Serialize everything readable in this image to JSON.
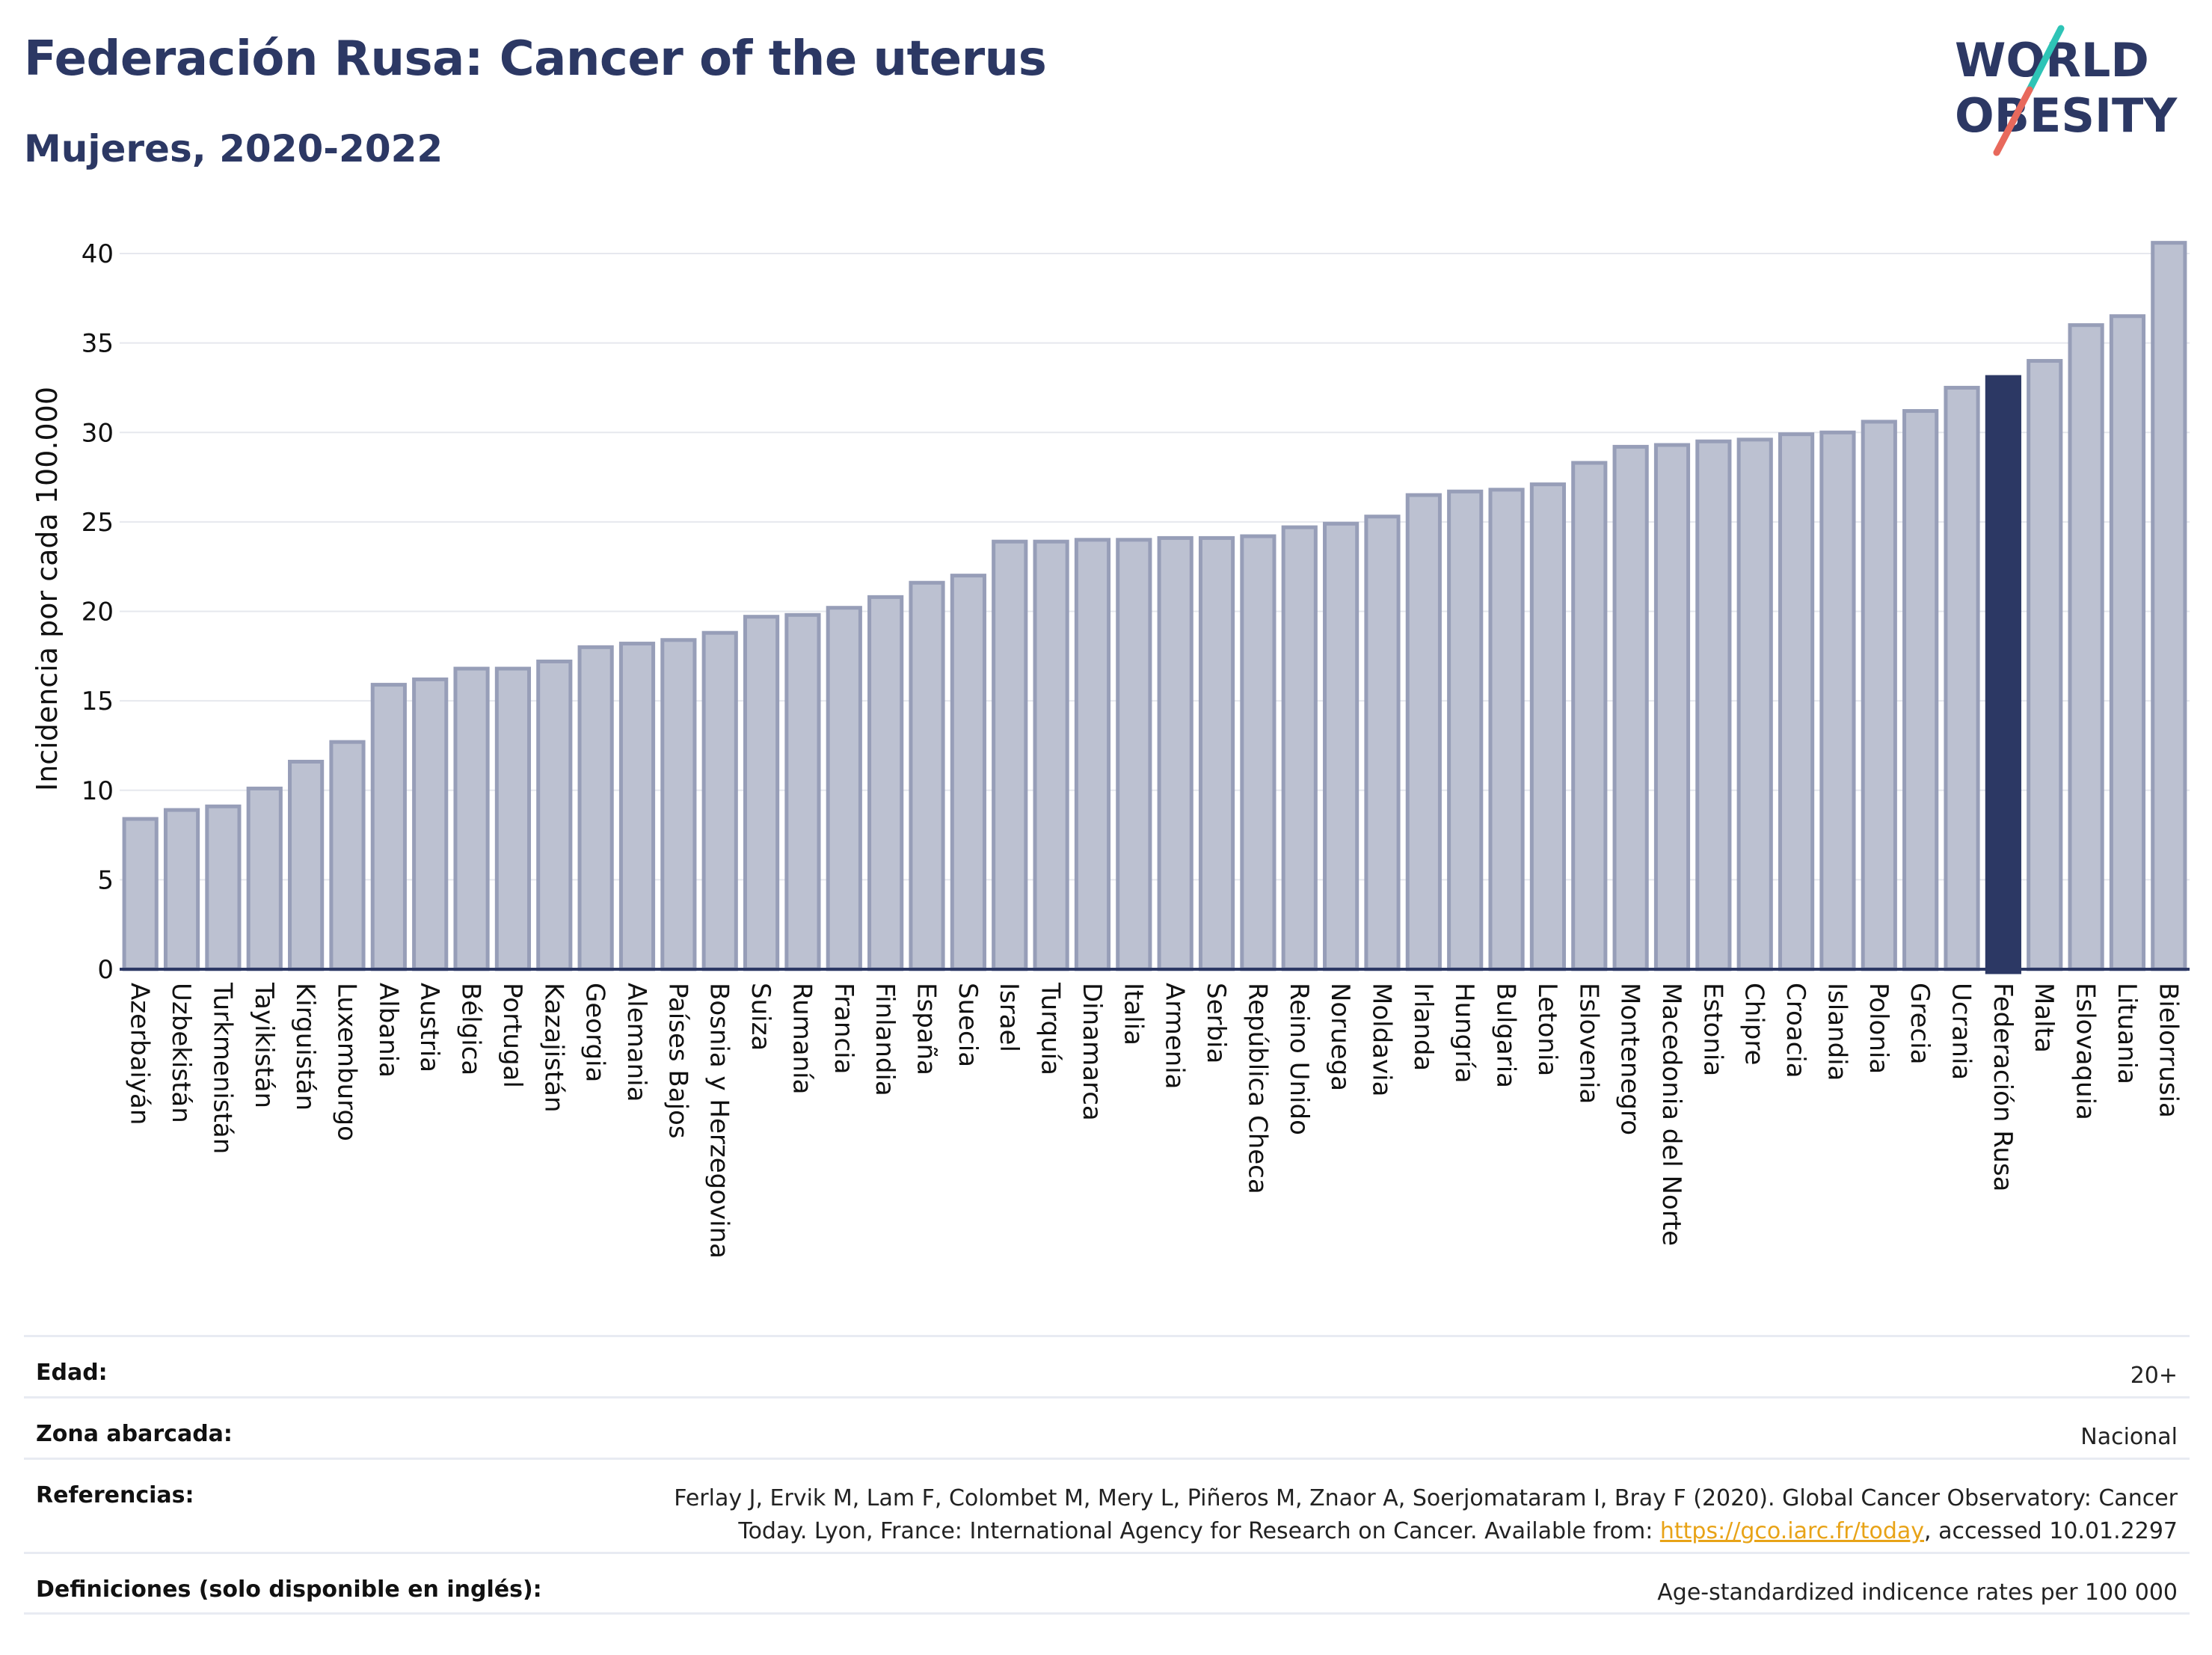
{
  "header": {
    "title": "Federación Rusa: Cancer of the uterus",
    "subtitle": "Mujeres, 2020-2022",
    "logo_line1": "WORLD",
    "logo_line2": "OBESITY"
  },
  "colors": {
    "bar_fill": "#bcc1d1",
    "bar_edge": "#979eb8",
    "highlight": "#2c3864",
    "title": "#2c3864",
    "grid": "#e6e8ee",
    "logo_teal": "#2ec4b6",
    "logo_coral": "#e8695c"
  },
  "chart_data": {
    "type": "bar",
    "ylabel": "Incidencia por cada  100.000",
    "ylim": [
      0,
      42
    ],
    "yticks": [
      0,
      5,
      10,
      15,
      20,
      25,
      30,
      35,
      40
    ],
    "highlight": "Federación Rusa",
    "grid": true,
    "categories": [
      "Azerbaiyán",
      "Uzbekistán",
      "Turkmenistán",
      "Tayikistán",
      "Kirguistán",
      "Luxemburgo",
      "Albania",
      "Austria",
      "Bélgica",
      "Portugal",
      "Kazajistán",
      "Georgia",
      "Alemania",
      "Países Bajos",
      "Bosnia y Herzegovina",
      "Suiza",
      "Rumanía",
      "Francia",
      "Finlandia",
      "España",
      "Suecia",
      "Israel",
      "Turquía",
      "Dinamarca",
      "Italia",
      "Armenia",
      "Serbia",
      "República Checa",
      "Reino Unido",
      "Noruega",
      "Moldavia",
      "Irlanda",
      "Hungría",
      "Bulgaria",
      "Letonia",
      "Eslovenia",
      "Montenegro",
      "Macedonia del Norte",
      "Estonia",
      "Chipre",
      "Croacia",
      "Islandia",
      "Polonia",
      "Grecia",
      "Ucrania",
      "Federación Rusa",
      "Malta",
      "Eslovaquia",
      "Lituania",
      "Bielorrusia"
    ],
    "values": [
      8.4,
      8.9,
      9.1,
      10.1,
      11.6,
      12.7,
      15.9,
      16.2,
      16.8,
      16.8,
      17.2,
      18.0,
      18.2,
      18.4,
      18.8,
      19.7,
      19.8,
      20.2,
      20.8,
      21.6,
      22.0,
      23.9,
      23.9,
      24.0,
      24.0,
      24.1,
      24.1,
      24.2,
      24.7,
      24.9,
      25.3,
      26.5,
      26.7,
      26.8,
      27.1,
      28.3,
      29.2,
      29.3,
      29.5,
      29.6,
      29.9,
      30.0,
      30.6,
      31.2,
      32.5,
      33.1,
      34.0,
      36.0,
      36.5,
      40.6
    ]
  },
  "meta": {
    "age_label": "Edad:",
    "age_value": "20+",
    "zone_label": "Zona abarcada:",
    "zone_value": "Nacional",
    "ref_label": "Referencias:",
    "ref_text_1": "Ferlay J, Ervik M, Lam F, Colombet M, Mery L, Piñeros M, Znaor A, Soerjomataram I, Bray F (2020). Global Cancer Observatory: Cancer",
    "ref_text_2": "Today. Lyon, France: International Agency for Research on Cancer. Available from: ",
    "ref_link": "https://gco.iarc.fr/today",
    "ref_text_3": ", accessed 10.01.2297",
    "def_label": "Definiciones (solo disponible en inglés):",
    "def_value": "Age-standardized indicence rates per 100 000"
  }
}
